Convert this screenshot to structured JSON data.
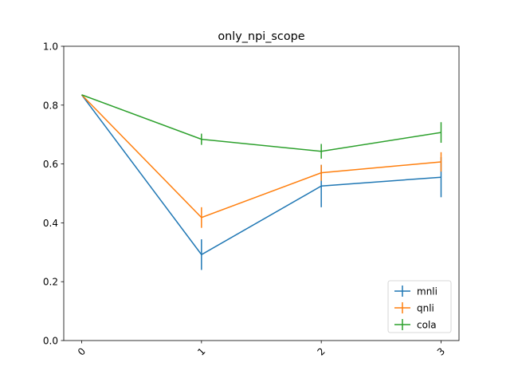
{
  "chart_data": {
    "type": "line",
    "title": "only_npi_scope",
    "xlabel": "",
    "ylabel": "",
    "x": [
      0,
      1,
      2,
      3
    ],
    "x_tick_labels": [
      "0",
      "1",
      "2",
      "3"
    ],
    "ylim": [
      0.0,
      1.0
    ],
    "y_ticks": [
      0.0,
      0.2,
      0.4,
      0.6,
      0.8,
      1.0
    ],
    "y_tick_labels": [
      "0.0",
      "0.2",
      "0.4",
      "0.6",
      "0.8",
      "1.0"
    ],
    "grid": false,
    "legend_position": "lower-right",
    "series": [
      {
        "name": "mnli",
        "color": "#1f77b4",
        "values": [
          0.835,
          0.292,
          0.525,
          0.555
        ],
        "errors": [
          0.0,
          0.052,
          0.072,
          0.068
        ]
      },
      {
        "name": "qnli",
        "color": "#ff7f0e",
        "values": [
          0.835,
          0.418,
          0.57,
          0.607
        ],
        "errors": [
          0.0,
          0.035,
          0.027,
          0.033
        ]
      },
      {
        "name": "cola",
        "color": "#2ca02c",
        "values": [
          0.835,
          0.684,
          0.643,
          0.707
        ],
        "errors": [
          0.0,
          0.019,
          0.025,
          0.035
        ]
      }
    ]
  }
}
